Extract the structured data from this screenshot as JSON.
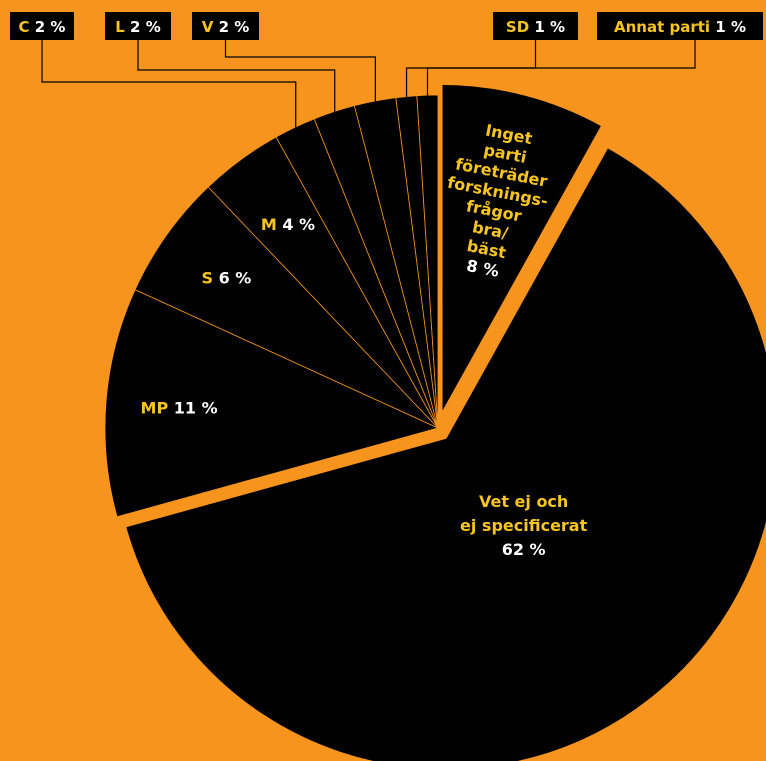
{
  "chart_data": {
    "type": "pie",
    "title": "",
    "colors": {
      "background": "#F7941D",
      "slice": "#000000",
      "name_label": "#F7C51E",
      "value_label": "#FFFFFF"
    },
    "slices": [
      {
        "name": "Inget parti företräder forskningsfrågor bra/bäst",
        "lines": [
          "Inget",
          "parti",
          "företräder",
          "forsknings-",
          "frågor",
          "bra/",
          "bäst"
        ],
        "value": 8,
        "display": "8 %",
        "exploded": true
      },
      {
        "name": "Vet ej och ej specificerat",
        "lines": [
          "Vet ej och",
          "ej specificerat"
        ],
        "value": 62,
        "display": "62 %",
        "exploded": true
      },
      {
        "name": "MP",
        "value": 11,
        "display": "11 %"
      },
      {
        "name": "S",
        "value": 6,
        "display": "6 %"
      },
      {
        "name": "M",
        "value": 4,
        "display": "4 %"
      },
      {
        "name": "C",
        "value": 2,
        "display": "2 %",
        "boxed": true
      },
      {
        "name": "L",
        "value": 2,
        "display": "2 %",
        "boxed": true
      },
      {
        "name": "V",
        "value": 2,
        "display": "2 %",
        "boxed": true
      },
      {
        "name": "SD",
        "value": 1,
        "display": "1 %",
        "boxed": true
      },
      {
        "name": "Annat parti",
        "value": 1,
        "display": "1 %",
        "boxed": true
      }
    ]
  }
}
